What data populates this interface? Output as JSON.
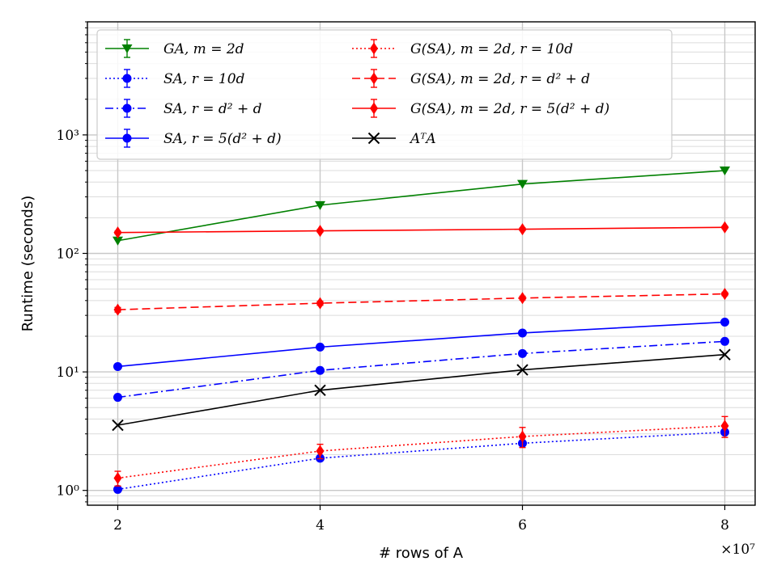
{
  "chart_data": {
    "type": "line",
    "title": "",
    "xlabel": "# rows of A",
    "ylabel": "Runtime (seconds)",
    "x_multiplier_label": "×10⁷",
    "x": [
      2,
      4,
      6,
      8
    ],
    "xticks": [
      "2",
      "4",
      "6",
      "8"
    ],
    "xlim": [
      1.7,
      8.3
    ],
    "yscale": "log",
    "ylim": [
      0.75,
      9000
    ],
    "ytick_values": [
      1,
      10,
      100,
      1000
    ],
    "ytick_labels": [
      "10⁰",
      "10¹",
      "10²",
      "10³"
    ],
    "grid": true,
    "legend_position": "top",
    "series": [
      {
        "name": "GA, m = 2d",
        "color": "#008000",
        "marker": "triangle-down",
        "dash": "solid",
        "values": [
          128,
          255,
          385,
          500
        ],
        "err": [
          0,
          0,
          0,
          0
        ]
      },
      {
        "name": "SA, r = 10d",
        "color": "#0000ff",
        "marker": "circle",
        "dash": "dotted",
        "values": [
          1.02,
          1.87,
          2.5,
          3.1
        ],
        "err": [
          0.05,
          0.08,
          0.1,
          0.15
        ]
      },
      {
        "name": "SA, r = d² + d",
        "color": "#0000ff",
        "marker": "circle",
        "dash": "dashdot",
        "values": [
          6.1,
          10.3,
          14.3,
          18.1
        ],
        "err": [
          0.2,
          0.3,
          0.3,
          0.4
        ]
      },
      {
        "name": "SA, r = 5(d² + d)",
        "color": "#0000ff",
        "marker": "circle",
        "dash": "solid",
        "values": [
          11.1,
          16.2,
          21.3,
          26.3
        ],
        "err": [
          0.3,
          0.4,
          0.5,
          0.6
        ]
      },
      {
        "name": "G(SA), m = 2d, r = 10d",
        "color": "#ff0000",
        "marker": "diamond",
        "dash": "dotted",
        "values": [
          1.27,
          2.15,
          2.85,
          3.5
        ],
        "err": [
          0.18,
          0.3,
          0.55,
          0.7
        ]
      },
      {
        "name": "G(SA), m = 2d, r = d² + d",
        "color": "#ff0000",
        "marker": "diamond",
        "dash": "dashed",
        "values": [
          33.5,
          38.0,
          42.0,
          45.5
        ],
        "err": [
          1.5,
          1.5,
          1.5,
          1.5
        ]
      },
      {
        "name": "G(SA), m = 2d, r = 5(d² + d)",
        "color": "#ff0000",
        "marker": "diamond",
        "dash": "solid",
        "values": [
          150,
          155,
          160,
          166
        ],
        "err": [
          4,
          4,
          4,
          4
        ]
      },
      {
        "name": "AᵀA",
        "color": "#000000",
        "marker": "x",
        "dash": "solid",
        "values": [
          3.55,
          7.0,
          10.4,
          14.0
        ],
        "err": [
          0,
          0,
          0,
          0
        ]
      }
    ]
  }
}
